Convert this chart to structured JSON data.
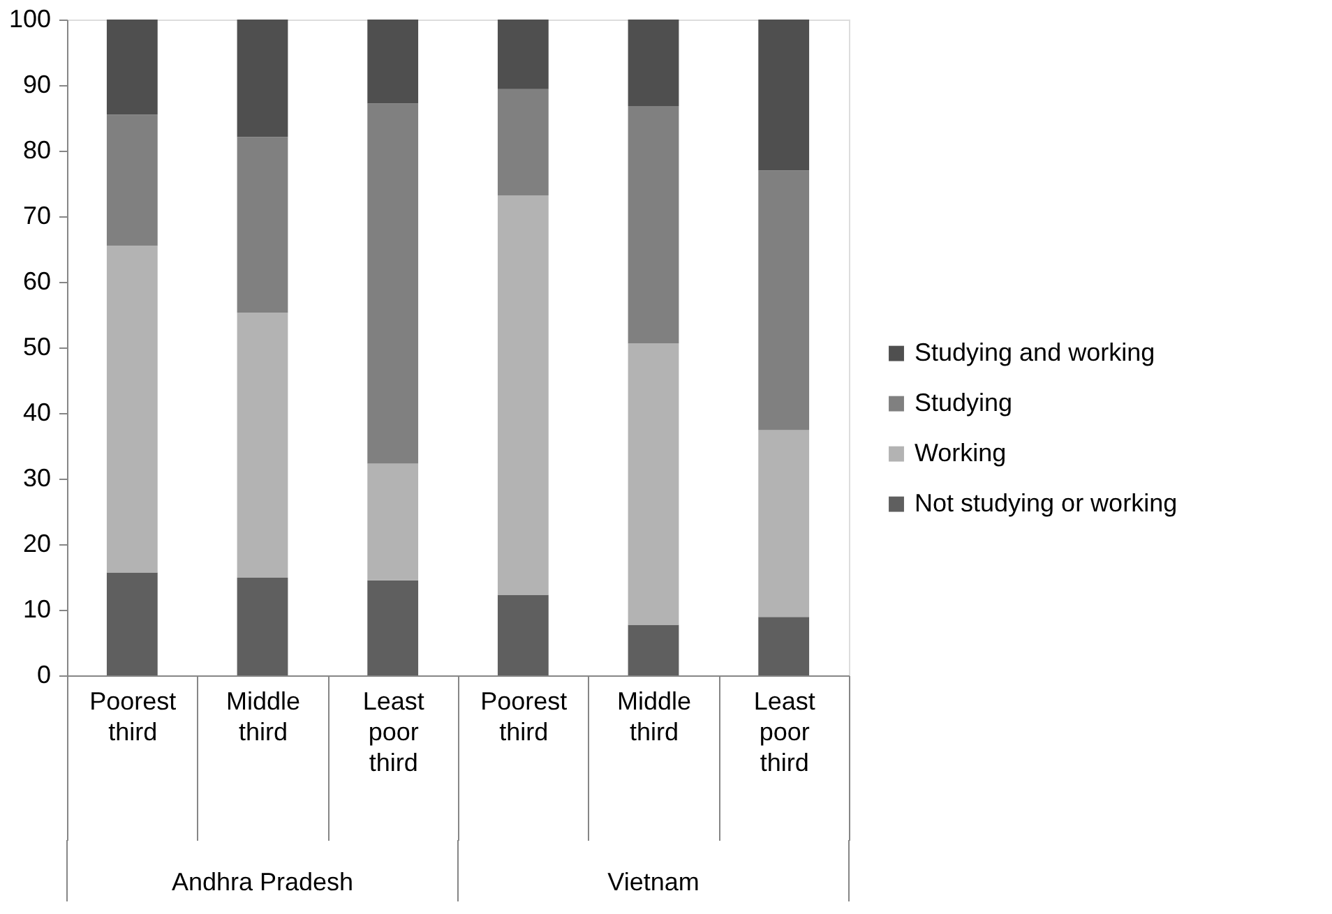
{
  "chart_data": {
    "type": "bar",
    "stacked": true,
    "categories": [
      "Poorest third",
      "Middle third",
      "Least poor third",
      "Poorest third",
      "Middle third",
      "Least poor third"
    ],
    "annotations": [
      "Andhra Pradesh",
      "Vietnam"
    ],
    "series": [
      {
        "name": "Not studying or working",
        "color": "#5f5f5f",
        "values": [
          15.7,
          14.9,
          14.5,
          12.3,
          7.7,
          8.9
        ]
      },
      {
        "name": "Working",
        "color": "#b3b3b3",
        "values": [
          49.8,
          40.4,
          17.8,
          60.9,
          42.9,
          28.5
        ]
      },
      {
        "name": "Studying",
        "color": "#808080",
        "values": [
          20.0,
          26.8,
          54.9,
          16.2,
          36.2,
          39.6
        ]
      },
      {
        "name": "Studying and working",
        "color": "#4f4f4f",
        "values": [
          14.5,
          17.9,
          12.8,
          10.6,
          13.2,
          23.0
        ]
      }
    ],
    "ylim": [
      0,
      100
    ],
    "yticks": [
      0,
      10,
      20,
      30,
      40,
      50,
      60,
      70,
      80,
      90,
      100
    ],
    "grid": false,
    "legend": "right"
  }
}
